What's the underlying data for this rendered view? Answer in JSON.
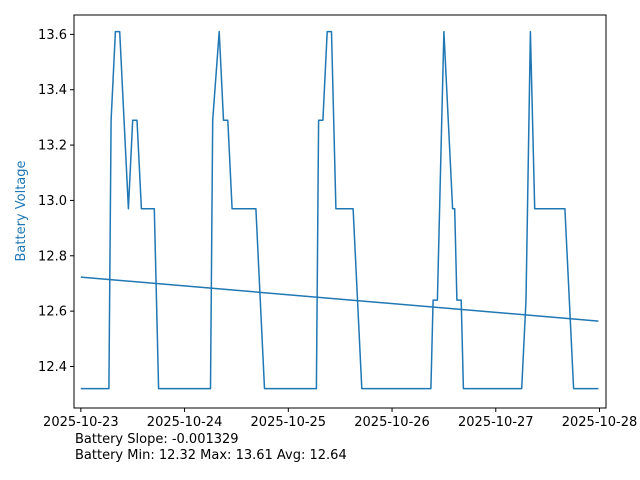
{
  "chart_data": {
    "type": "line",
    "title": "",
    "xlabel": "",
    "ylabel": "Battery Voltage",
    "xlim": [
      "2025-10-22 22:25",
      "2025-10-28 01:30"
    ],
    "ylim": [
      12.25,
      13.67
    ],
    "yticks": [
      12.4,
      12.6,
      12.8,
      13.0,
      13.2,
      13.4,
      13.6
    ],
    "xticks": [
      "2025-10-23",
      "2025-10-24",
      "2025-10-25",
      "2025-10-26",
      "2025-10-27",
      "2025-10-28"
    ],
    "grid": false,
    "legend": "none",
    "colors": {
      "series": "#1f77b4",
      "ylabel": "#1f77b4",
      "axes": "#000000"
    },
    "series": [
      {
        "values": [
          [
            "2025-10-23 00:00",
            12.32
          ],
          [
            "2025-10-23 06:30",
            12.32
          ],
          [
            "2025-10-23 07:00",
            13.29
          ],
          [
            "2025-10-23 08:00",
            13.61
          ],
          [
            "2025-10-23 09:00",
            13.61
          ],
          [
            "2025-10-23 11:00",
            12.97
          ],
          [
            "2025-10-23 12:00",
            13.29
          ],
          [
            "2025-10-23 13:00",
            13.29
          ],
          [
            "2025-10-23 14:00",
            12.97
          ],
          [
            "2025-10-23 17:00",
            12.97
          ],
          [
            "2025-10-23 18:00",
            12.32
          ],
          [
            "2025-10-24 06:00",
            12.32
          ],
          [
            "2025-10-24 06:30",
            13.29
          ],
          [
            "2025-10-24 08:00",
            13.61
          ],
          [
            "2025-10-24 09:00",
            13.29
          ],
          [
            "2025-10-24 10:00",
            13.29
          ],
          [
            "2025-10-24 11:00",
            12.97
          ],
          [
            "2025-10-24 16:30",
            12.97
          ],
          [
            "2025-10-24 18:30",
            12.32
          ],
          [
            "2025-10-25 06:30",
            12.32
          ],
          [
            "2025-10-25 07:00",
            13.29
          ],
          [
            "2025-10-25 08:00",
            13.29
          ],
          [
            "2025-10-25 09:00",
            13.61
          ],
          [
            "2025-10-25 10:00",
            13.61
          ],
          [
            "2025-10-25 11:00",
            12.97
          ],
          [
            "2025-10-25 15:00",
            12.97
          ],
          [
            "2025-10-25 17:00",
            12.32
          ],
          [
            "2025-10-26 09:00",
            12.32
          ],
          [
            "2025-10-26 09:30",
            12.64
          ],
          [
            "2025-10-26 10:30",
            12.64
          ],
          [
            "2025-10-26 11:00",
            12.97
          ],
          [
            "2025-10-26 12:00",
            13.61
          ],
          [
            "2025-10-26 14:00",
            12.97
          ],
          [
            "2025-10-26 14:30",
            12.97
          ],
          [
            "2025-10-26 15:00",
            12.64
          ],
          [
            "2025-10-26 16:00",
            12.64
          ],
          [
            "2025-10-26 16:30",
            12.32
          ],
          [
            "2025-10-27 06:00",
            12.32
          ],
          [
            "2025-10-27 07:00",
            12.64
          ],
          [
            "2025-10-27 08:00",
            13.61
          ],
          [
            "2025-10-27 09:00",
            12.97
          ],
          [
            "2025-10-27 16:00",
            12.97
          ],
          [
            "2025-10-27 18:00",
            12.32
          ],
          [
            "2025-10-27 23:45",
            12.32
          ]
        ]
      },
      {
        "values": [
          [
            "2025-10-23 00:00",
            12.723
          ],
          [
            "2025-10-27 23:45",
            12.564
          ]
        ]
      }
    ]
  },
  "stats": {
    "slope": "Battery Slope: -0.001329",
    "summary": "Battery Min: 12.32 Max: 13.61 Avg: 12.64"
  }
}
